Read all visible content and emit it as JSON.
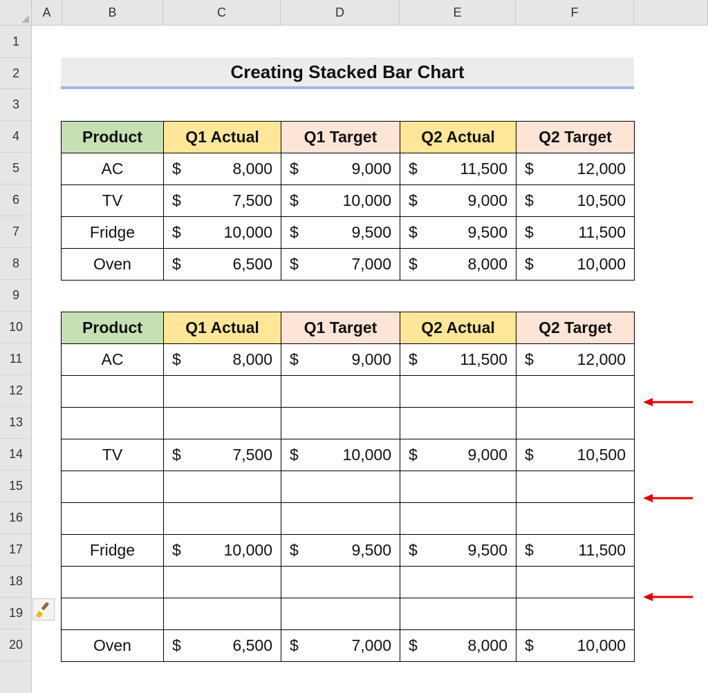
{
  "columns": [
    "A",
    "B",
    "C",
    "D",
    "E",
    "F"
  ],
  "rows": [
    "1",
    "2",
    "3",
    "4",
    "5",
    "6",
    "7",
    "8",
    "9",
    "10",
    "11",
    "12",
    "13",
    "14",
    "15",
    "16",
    "17",
    "18",
    "19",
    "20"
  ],
  "title": "Creating Stacked Bar Chart",
  "headers": [
    "Product",
    "Q1 Actual",
    "Q1 Target",
    "Q2 Actual",
    "Q2 Target"
  ],
  "currency": "$",
  "table1": [
    {
      "product": "AC",
      "values": [
        "8,000",
        "9,000",
        "11,500",
        "12,000"
      ]
    },
    {
      "product": "TV",
      "values": [
        "7,500",
        "10,000",
        "9,000",
        "10,500"
      ]
    },
    {
      "product": "Fridge",
      "values": [
        "10,000",
        "9,500",
        "9,500",
        "11,500"
      ]
    },
    {
      "product": "Oven",
      "values": [
        "6,500",
        "7,000",
        "8,000",
        "10,000"
      ]
    }
  ],
  "table2": [
    {
      "product": "AC",
      "values": [
        "8,000",
        "9,000",
        "11,500",
        "12,000"
      ]
    },
    {
      "product": "",
      "values": [
        "",
        "",
        "",
        ""
      ]
    },
    {
      "product": "",
      "values": [
        "",
        "",
        "",
        ""
      ]
    },
    {
      "product": "TV",
      "values": [
        "7,500",
        "10,000",
        "9,000",
        "10,500"
      ]
    },
    {
      "product": "",
      "values": [
        "",
        "",
        "",
        ""
      ]
    },
    {
      "product": "",
      "values": [
        "",
        "",
        "",
        ""
      ]
    },
    {
      "product": "Fridge",
      "values": [
        "10,000",
        "9,500",
        "9,500",
        "11,500"
      ]
    },
    {
      "product": "",
      "values": [
        "",
        "",
        "",
        ""
      ]
    },
    {
      "product": "",
      "values": [
        "",
        "",
        "",
        ""
      ]
    },
    {
      "product": "Oven",
      "values": [
        "6,500",
        "7,000",
        "8,000",
        "10,000"
      ]
    }
  ],
  "colors": {
    "product_header": "#c6e0b4",
    "actual_header": "#ffe699",
    "target_header": "#fce4d6",
    "arrow": "#e00000",
    "title_underline": "#9db8e2"
  },
  "icons": {
    "paste_options": "paintbrush-icon",
    "arrow": "arrow-left-icon"
  }
}
